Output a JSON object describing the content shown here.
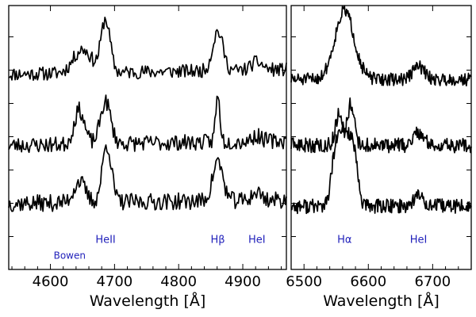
{
  "chart_data": [
    {
      "type": "line",
      "panel": "left",
      "xlabel": "Wavelength [Å]",
      "ylabel": "",
      "xlim": [
        4535,
        4968
      ],
      "ylim": [
        0,
        100
      ],
      "xticks": [
        4600,
        4700,
        4800,
        4900
      ],
      "xtick_labels": [
        "4600",
        "4700",
        "4800",
        "4900"
      ],
      "ytick_count": 8,
      "annotations": [
        {
          "id": "bowen",
          "text": "Bowen",
          "x": 4630,
          "y": 4,
          "style": "small"
        },
        {
          "id": "heii",
          "text": "HeII",
          "x": 4686,
          "y": 10
        },
        {
          "id": "hbeta",
          "text": "Hβ",
          "x": 4861,
          "y": 10
        },
        {
          "id": "hei",
          "text": "HeI",
          "x": 4922,
          "y": 10
        }
      ],
      "series": [
        {
          "name": "top",
          "baseline": 74,
          "noise": 1.3,
          "slope": 0.004,
          "seed": 11,
          "lines": [
            {
              "center": 4650,
              "width": 14,
              "height": 9
            },
            {
              "center": 4686,
              "width": 7,
              "height": 20
            },
            {
              "center": 4861,
              "width": 8,
              "height": 15
            },
            {
              "center": 4922,
              "width": 9,
              "height": 3
            }
          ]
        },
        {
          "name": "middle",
          "baseline": 47,
          "noise": 1.5,
          "slope": 0.004,
          "seed": 23,
          "lines": [
            {
              "center": 4645,
              "width": 8,
              "height": 13
            },
            {
              "center": 4686,
              "width": 8,
              "height": 16
            },
            {
              "center": 4861,
              "width": 3.5,
              "height": 17
            },
            {
              "center": 4922,
              "width": 8,
              "height": 2
            }
          ]
        },
        {
          "name": "bottom",
          "baseline": 25,
          "noise": 1.6,
          "slope": 0.003,
          "seed": 37,
          "lines": [
            {
              "center": 4645,
              "width": 9,
              "height": 8
            },
            {
              "center": 4688,
              "width": 7,
              "height": 22
            },
            {
              "center": 4861,
              "width": 8,
              "height": 15
            },
            {
              "center": 4922,
              "width": 8,
              "height": 3
            }
          ]
        }
      ]
    },
    {
      "type": "line",
      "panel": "right",
      "xlabel": "Wavelength [Å]",
      "ylabel": "",
      "xlim": [
        6480,
        6760
      ],
      "ylim": [
        0,
        100
      ],
      "xticks": [
        6500,
        6600,
        6700
      ],
      "xtick_labels": [
        "6500",
        "6600",
        "6700"
      ],
      "ytick_count": 8,
      "annotations": [
        {
          "id": "halpha",
          "text": "Hα",
          "x": 6563,
          "y": 10
        },
        {
          "id": "hei",
          "text": "HeI",
          "x": 6678,
          "y": 10
        }
      ],
      "series": [
        {
          "name": "top",
          "baseline": 72,
          "noise": 1.2,
          "slope": 0.0,
          "seed": 51,
          "lines": [
            {
              "center": 6563,
              "width": 15,
              "height": 26
            },
            {
              "center": 6678,
              "width": 9,
              "height": 5
            }
          ]
        },
        {
          "name": "middle",
          "baseline": 47,
          "noise": 1.4,
          "slope": 0.0,
          "seed": 63,
          "lines": [
            {
              "center": 6555,
              "width": 6,
              "height": 12
            },
            {
              "center": 6573,
              "width": 5,
              "height": 16
            },
            {
              "center": 6678,
              "width": 8,
              "height": 5
            }
          ]
        },
        {
          "name": "bottom",
          "baseline": 24,
          "noise": 1.4,
          "slope": 0.0,
          "seed": 77,
          "lines": [
            {
              "center": 6563,
              "width": 18,
              "height": 28,
              "flat": true
            },
            {
              "center": 6678,
              "width": 8,
              "height": 4
            }
          ]
        }
      ]
    }
  ]
}
